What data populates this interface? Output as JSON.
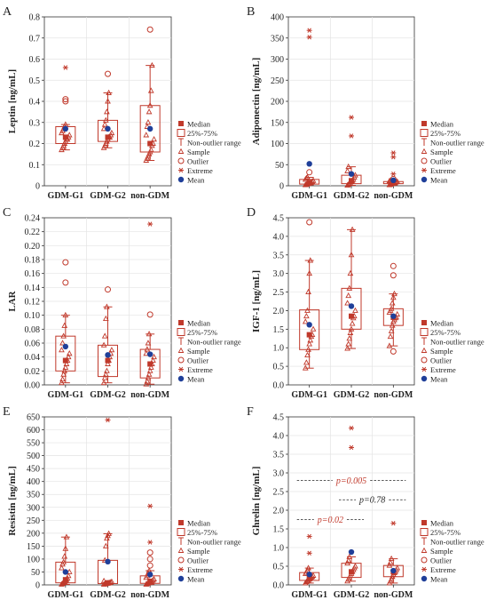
{
  "colors": {
    "data": "#c0392b",
    "mean": "#1f3f99",
    "axis": "#333333",
    "grid": "#e4e4e4"
  },
  "legend_icons": [
    "square-marker",
    "box-marker",
    "whisker-marker",
    "triangle-marker",
    "circle-marker",
    "asterisk-marker",
    "dot-marker"
  ],
  "legend": [
    "Median",
    "25%-75%",
    "Non-outlier range",
    "Sample",
    "Outlier",
    "Extreme",
    "Mean"
  ],
  "chart_data": [
    {
      "type": "box",
      "panel_letter": "A",
      "ylabel": "Leptin [ng/mL]",
      "categories": [
        "GDM-G1",
        "GDM-G2",
        "non-GDM"
      ],
      "ylim": [
        0,
        0.8
      ],
      "yticks": [
        "0",
        "0.1",
        "0.2",
        "0.3",
        "0.4",
        "0.5",
        "0.6",
        "0.7",
        "0.8"
      ],
      "grid": true,
      "legend_position": "right",
      "boxes": [
        {
          "category": "GDM-G1",
          "min": 0.17,
          "q1": 0.2,
          "median": 0.23,
          "q3": 0.28,
          "max": 0.29,
          "mean": 0.27,
          "samples": [
            0.17,
            0.18,
            0.19,
            0.2,
            0.21,
            0.22,
            0.22,
            0.23,
            0.24,
            0.25,
            0.26,
            0.27,
            0.28,
            0.29
          ],
          "outliers": [
            0.4,
            0.41
          ],
          "extremes": [
            0.56
          ]
        },
        {
          "category": "GDM-G2",
          "min": 0.18,
          "q1": 0.21,
          "median": 0.23,
          "q3": 0.31,
          "max": 0.44,
          "mean": 0.27,
          "samples": [
            0.18,
            0.19,
            0.2,
            0.21,
            0.22,
            0.23,
            0.23,
            0.24,
            0.25,
            0.27,
            0.29,
            0.31,
            0.35,
            0.4,
            0.44
          ],
          "outliers": [
            0.53
          ],
          "extremes": []
        },
        {
          "category": "non-GDM",
          "min": 0.12,
          "q1": 0.16,
          "median": 0.2,
          "q3": 0.38,
          "max": 0.57,
          "mean": 0.27,
          "samples": [
            0.12,
            0.13,
            0.14,
            0.15,
            0.16,
            0.17,
            0.19,
            0.2,
            0.22,
            0.24,
            0.28,
            0.3,
            0.35,
            0.38,
            0.45,
            0.57
          ],
          "outliers": [
            0.74
          ],
          "extremes": []
        }
      ]
    },
    {
      "type": "box",
      "panel_letter": "B",
      "ylabel": "Adiponectin [ng/mL]",
      "categories": [
        "GDM-G1",
        "GDM-G2",
        "non-GDM"
      ],
      "ylim": [
        0,
        400
      ],
      "yticks": [
        "0",
        "50",
        "100",
        "150",
        "200",
        "250",
        "300",
        "350",
        "400"
      ],
      "grid": true,
      "legend_position": "right",
      "boxes": [
        {
          "category": "GDM-G1",
          "min": 2,
          "q1": 4,
          "median": 7,
          "q3": 15,
          "max": 20,
          "mean": 52,
          "samples": [
            2,
            3,
            4,
            5,
            6,
            7,
            8,
            10,
            12,
            15,
            18,
            20
          ],
          "outliers": [
            32
          ],
          "extremes": [
            352,
            368
          ]
        },
        {
          "category": "GDM-G2",
          "min": 1,
          "q1": 5,
          "median": 12,
          "q3": 25,
          "max": 45,
          "mean": 28,
          "samples": [
            1,
            3,
            5,
            8,
            10,
            12,
            15,
            20,
            25,
            35,
            45
          ],
          "outliers": [],
          "extremes": [
            118,
            162
          ]
        },
        {
          "category": "non-GDM",
          "min": 2,
          "q1": 5,
          "median": 7,
          "q3": 10,
          "max": 12,
          "mean": 13,
          "samples": [
            2,
            3,
            4,
            5,
            6,
            7,
            8,
            9,
            10,
            11,
            12
          ],
          "outliers": [
            16
          ],
          "extremes": [
            28,
            68,
            78
          ]
        }
      ]
    },
    {
      "type": "box",
      "panel_letter": "C",
      "ylabel": "LAR",
      "categories": [
        "GDM-G1",
        "GDM-G2",
        "non-GDM"
      ],
      "ylim": [
        0,
        0.24
      ],
      "yticks": [
        "0.00",
        "0.02",
        "0.04",
        "0.06",
        "0.08",
        "0.10",
        "0.12",
        "0.14",
        "0.16",
        "0.18",
        "0.20",
        "0.22",
        "0.24"
      ],
      "grid": true,
      "legend_position": "right",
      "boxes": [
        {
          "category": "GDM-G1",
          "min": 0.003,
          "q1": 0.02,
          "median": 0.035,
          "q3": 0.07,
          "max": 0.1,
          "mean": 0.055,
          "samples": [
            0.003,
            0.008,
            0.015,
            0.02,
            0.025,
            0.03,
            0.035,
            0.04,
            0.045,
            0.05,
            0.06,
            0.07,
            0.085,
            0.1
          ],
          "outliers": [
            0.147,
            0.176
          ],
          "extremes": []
        },
        {
          "category": "GDM-G2",
          "min": 0.003,
          "q1": 0.012,
          "median": 0.035,
          "q3": 0.057,
          "max": 0.112,
          "mean": 0.043,
          "samples": [
            0.003,
            0.01,
            0.015,
            0.02,
            0.03,
            0.035,
            0.04,
            0.045,
            0.05,
            0.057,
            0.07,
            0.095,
            0.112
          ],
          "outliers": [
            0.137
          ],
          "extremes": []
        },
        {
          "category": "non-GDM",
          "min": 0.001,
          "q1": 0.01,
          "median": 0.03,
          "q3": 0.051,
          "max": 0.073,
          "mean": 0.044,
          "samples": [
            0.001,
            0.005,
            0.01,
            0.015,
            0.02,
            0.025,
            0.03,
            0.035,
            0.04,
            0.045,
            0.051,
            0.06,
            0.073
          ],
          "outliers": [
            0.101
          ],
          "extremes": [
            0.231
          ]
        }
      ]
    },
    {
      "type": "box",
      "panel_letter": "D",
      "ylabel": "IGF-1 [ng/mL]",
      "categories": [
        "GDM-G1",
        "GDM-G2",
        "non-GDM"
      ],
      "ylim": [
        0,
        4.5
      ],
      "yticks": [
        "0.0",
        "0.5",
        "1.0",
        "1.5",
        "2.0",
        "2.5",
        "3.0",
        "3.5",
        "4.0",
        "4.5"
      ],
      "grid": true,
      "legend_position": "right",
      "boxes": [
        {
          "category": "GDM-G1",
          "min": 0.45,
          "q1": 0.95,
          "median": 1.35,
          "q3": 2.02,
          "max": 3.35,
          "mean": 1.62,
          "samples": [
            0.45,
            0.6,
            0.8,
            0.95,
            1.1,
            1.2,
            1.3,
            1.35,
            1.5,
            1.7,
            1.85,
            2.0,
            2.5,
            3.0,
            3.35
          ],
          "outliers": [
            4.38
          ],
          "extremes": []
        },
        {
          "category": "GDM-G2",
          "min": 0.98,
          "q1": 1.5,
          "median": 1.85,
          "q3": 2.6,
          "max": 4.18,
          "mean": 2.12,
          "samples": [
            0.98,
            1.1,
            1.25,
            1.4,
            1.5,
            1.65,
            1.8,
            1.85,
            2.0,
            2.2,
            2.4,
            2.6,
            3.0,
            3.5,
            4.18
          ],
          "outliers": [],
          "extremes": []
        },
        {
          "category": "non-GDM",
          "min": 1.05,
          "q1": 1.6,
          "median": 1.82,
          "q3": 2.05,
          "max": 2.45,
          "mean": 1.85,
          "samples": [
            1.05,
            1.3,
            1.45,
            1.6,
            1.7,
            1.75,
            1.8,
            1.82,
            1.9,
            1.95,
            2.0,
            2.05,
            2.2,
            2.35,
            2.45
          ],
          "outliers": [
            0.9,
            2.95,
            3.2
          ],
          "extremes": []
        }
      ]
    },
    {
      "type": "box",
      "panel_letter": "E",
      "ylabel": "Resistin [ng/mL]",
      "categories": [
        "GDM-G1",
        "GDM-G2",
        "non-GDM"
      ],
      "ylim": [
        0,
        650
      ],
      "yticks": [
        "0",
        "50",
        "100",
        "150",
        "200",
        "250",
        "300",
        "350",
        "400",
        "450",
        "500",
        "550",
        "600",
        "650"
      ],
      "grid": true,
      "legend_position": "right",
      "boxes": [
        {
          "category": "GDM-G1",
          "min": 2,
          "q1": 8,
          "median": 20,
          "q3": 88,
          "max": 185,
          "mean": 50,
          "samples": [
            2,
            5,
            8,
            12,
            15,
            20,
            25,
            35,
            50,
            65,
            80,
            88,
            110,
            140,
            185
          ],
          "outliers": [],
          "extremes": []
        },
        {
          "category": "GDM-G2",
          "min": 2,
          "q1": 5,
          "median": 8,
          "q3": 95,
          "max": 198,
          "mean": 90,
          "samples": [
            2,
            3,
            4,
            5,
            6,
            7,
            8,
            10,
            12,
            15,
            95,
            150,
            180,
            190,
            198
          ],
          "outliers": [],
          "extremes": [
            638
          ]
        },
        {
          "category": "non-GDM",
          "min": 2,
          "q1": 6,
          "median": 14,
          "q3": 35,
          "max": 55,
          "mean": 40,
          "samples": [
            2,
            4,
            6,
            8,
            10,
            12,
            14,
            18,
            22,
            28,
            35,
            45,
            55
          ],
          "outliers": [
            75,
            100,
            125
          ],
          "extremes": [
            165,
            305
          ]
        }
      ]
    },
    {
      "type": "box",
      "panel_letter": "F",
      "ylabel": "Ghrelin [ng/mL]",
      "categories": [
        "GDM-G1",
        "GDM-G2",
        "non-GDM"
      ],
      "ylim": [
        0,
        4.5
      ],
      "yticks": [
        "0.0",
        "0.5",
        "1.0",
        "1.5",
        "2.0",
        "2.5",
        "3.0",
        "3.5",
        "4.0",
        "4.5"
      ],
      "grid": true,
      "legend_position": "right",
      "annotations": [
        {
          "text": "p=0.005",
          "y": 2.8,
          "from": "GDM-G1",
          "to": "non-GDM",
          "color": "#c0392b"
        },
        {
          "text": "p=0.78",
          "y": 2.28,
          "from": "GDM-G2",
          "to": "non-GDM",
          "color": "#222222"
        },
        {
          "text": "p=0.02",
          "y": 1.75,
          "from": "GDM-G1",
          "to": "GDM-G2",
          "color": "#c0392b"
        }
      ],
      "boxes": [
        {
          "category": "GDM-G1",
          "min": 0.05,
          "q1": 0.12,
          "median": 0.2,
          "q3": 0.33,
          "max": 0.45,
          "mean": 0.28,
          "samples": [
            0.05,
            0.08,
            0.1,
            0.12,
            0.15,
            0.18,
            0.2,
            0.22,
            0.25,
            0.3,
            0.33,
            0.38,
            0.45
          ],
          "outliers": [],
          "extremes": [
            0.85,
            1.3
          ]
        },
        {
          "category": "GDM-G2",
          "min": 0.1,
          "q1": 0.2,
          "median": 0.35,
          "q3": 0.58,
          "max": 0.75,
          "mean": 0.88,
          "samples": [
            0.1,
            0.15,
            0.2,
            0.25,
            0.3,
            0.35,
            0.4,
            0.45,
            0.5,
            0.58,
            0.65,
            0.75
          ],
          "outliers": [],
          "extremes": [
            3.68,
            4.2
          ]
        },
        {
          "category": "non-GDM",
          "min": 0.05,
          "q1": 0.22,
          "median": 0.35,
          "q3": 0.52,
          "max": 0.7,
          "mean": 0.38,
          "samples": [
            0.05,
            0.1,
            0.15,
            0.22,
            0.28,
            0.32,
            0.35,
            0.4,
            0.45,
            0.52,
            0.6,
            0.7
          ],
          "outliers": [],
          "extremes": [
            1.65
          ]
        }
      ]
    }
  ]
}
